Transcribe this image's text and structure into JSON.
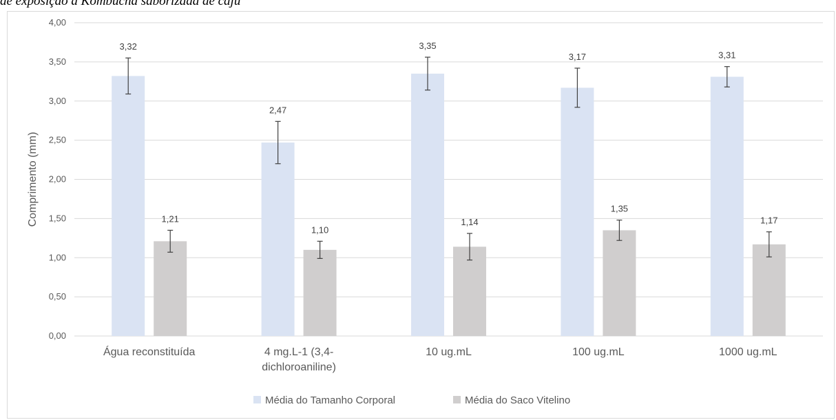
{
  "caption": "de exposição a Kombucha saborizada de caju",
  "colors": {
    "series1": "#dae3f3",
    "series2": "#d0cece",
    "grid": "#d9d9d9",
    "error_bar": "#404040"
  },
  "chart_data": {
    "type": "bar",
    "ylabel": "Comprimento (mm)",
    "xlabel": "",
    "ylim": [
      0,
      4
    ],
    "y_ticks": [
      "0,00",
      "0,50",
      "1,00",
      "1,50",
      "2,00",
      "2,50",
      "3,00",
      "3,50",
      "4,00"
    ],
    "categories": [
      [
        "Água reconstituída"
      ],
      [
        "4 mg.L-1 (3,4-",
        "dichloroaniline)"
      ],
      [
        "10 ug.mL"
      ],
      [
        "100 ug.mL"
      ],
      [
        "1000 ug.mL"
      ]
    ],
    "series": [
      {
        "name": "Média do Tamanho Corporal",
        "values": [
          3.32,
          2.47,
          3.35,
          3.17,
          3.31
        ],
        "labels": [
          "3,32",
          "2,47",
          "3,35",
          "3,17",
          "3,31"
        ],
        "error": [
          0.23,
          0.27,
          0.21,
          0.25,
          0.13
        ],
        "color": "#dae3f3"
      },
      {
        "name": "Média do Saco Vitelino",
        "values": [
          1.21,
          1.1,
          1.14,
          1.35,
          1.17
        ],
        "labels": [
          "1,21",
          "1,10",
          "1,14",
          "1,35",
          "1,17"
        ],
        "error": [
          0.14,
          0.11,
          0.17,
          0.13,
          0.16
        ],
        "color": "#d0cece"
      }
    ],
    "grid": true,
    "legend_position": "bottom"
  }
}
